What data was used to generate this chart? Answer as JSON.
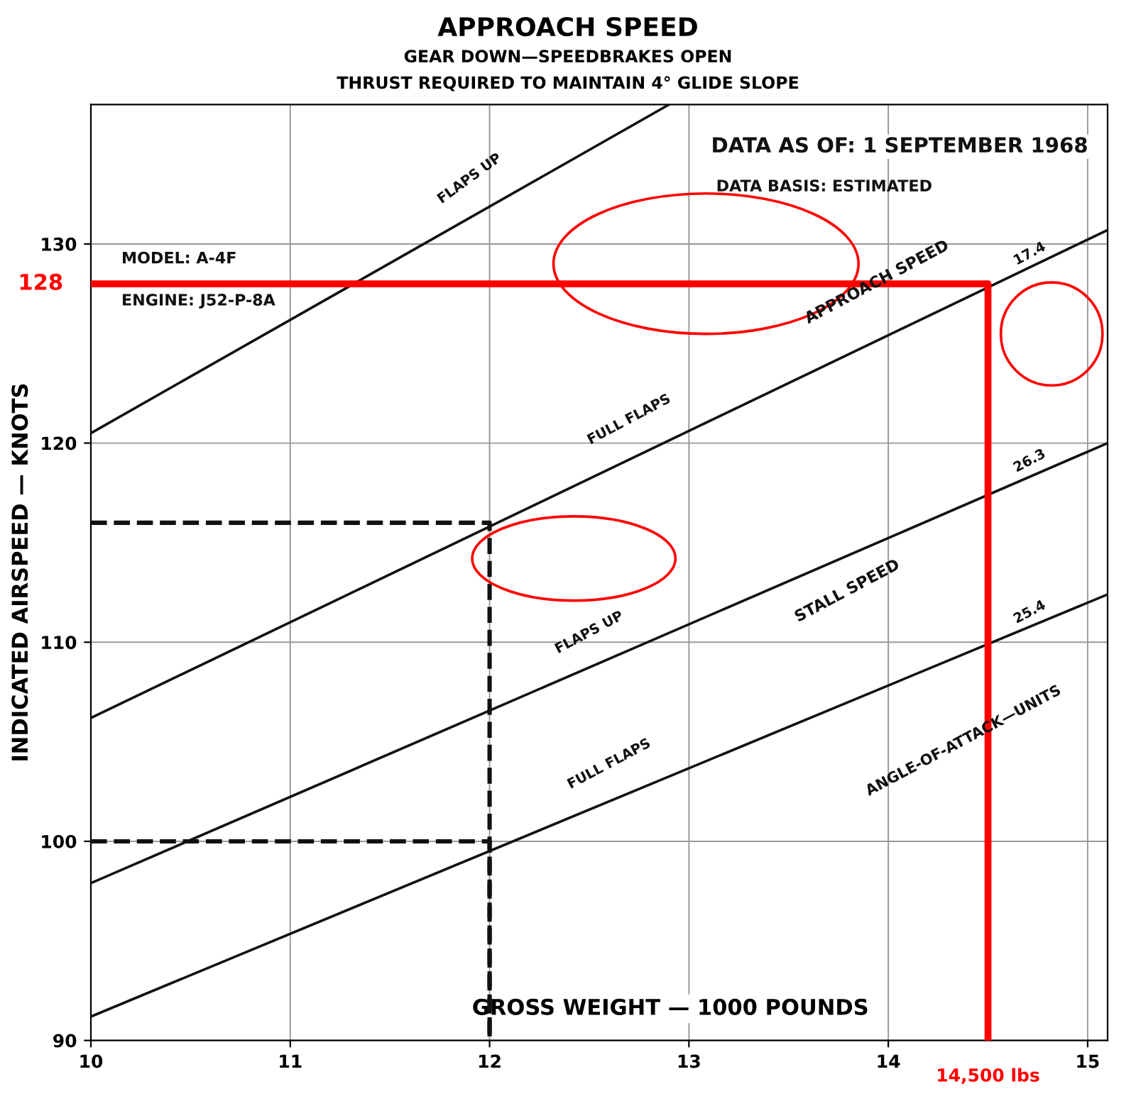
{
  "chart_data": {
    "type": "line",
    "title": "APPROACH SPEED",
    "subtitle": "GEAR DOWN—SPEEDBRAKES OPEN\nTHRUST REQUIRED TO MAINTAIN 4° GLIDE SLOPE",
    "xlabel": "GROSS WEIGHT — 1000 POUNDS",
    "ylabel": "INDICATED AIRSPEED — KNOTS",
    "xlim": [
      10,
      15.1
    ],
    "ylim": [
      90,
      137
    ],
    "xticks": [
      10,
      11,
      12,
      13,
      14,
      15
    ],
    "yticks": [
      90,
      100,
      110,
      120,
      130
    ],
    "grid": true,
    "marker": "none",
    "series": [
      {
        "color": "#111111",
        "x": [
          10,
          12.9
        ],
        "values": [
          120.5,
          137
        ],
        "line_style": "solid"
      },
      {
        "color": "#111111",
        "x": [
          10,
          15.1
        ],
        "values": [
          106.2,
          130.7
        ],
        "line_style": "solid"
      },
      {
        "color": "#111111",
        "x": [
          10,
          15.1
        ],
        "values": [
          97.9,
          120.0
        ],
        "line_style": "solid"
      },
      {
        "color": "#111111",
        "x": [
          10,
          15.1
        ],
        "values": [
          91.2,
          112.4
        ],
        "line_style": "solid"
      },
      {
        "color": "#111111",
        "x": [
          10,
          12,
          12
        ],
        "values": [
          116,
          116,
          90
        ],
        "line_style": "dashed"
      },
      {
        "color": "#111111",
        "x": [
          10,
          12,
          12
        ],
        "values": [
          100,
          100,
          90
        ],
        "line_style": "dashed"
      },
      {
        "color": "#ff0000",
        "x": [
          10,
          14.5,
          14.5
        ],
        "values": [
          128,
          128,
          90
        ],
        "line_style": "solid"
      }
    ],
    "annotations": [
      "DATA AS OF: 1 SEPTEMBER 1968",
      "DATA BASIS: ESTIMATED",
      "MODEL: A-4F",
      "ENGINE: J52-P-8A",
      "APPROACH SPEED",
      "STALL SPEED",
      "ANGLE-OF-ATTACK—UNITS",
      {
        "text": "FLAPS UP",
        "x": 11.9,
        "y": 131.3
      },
      {
        "text": "FULL FLAPS",
        "x": 12.7,
        "y": 119.2
      },
      {
        "text": "FLAPS UP",
        "x": 12.5,
        "y": 108.7
      },
      {
        "text": "FULL FLAPS",
        "x": 12.6,
        "y": 101.9
      },
      {
        "text": "17.4",
        "x": 14.65,
        "y": 128.5
      },
      {
        "text": "26.3",
        "x": 14.65,
        "y": 118.1
      },
      {
        "text": "25.4",
        "x": 14.65,
        "y": 110.5
      },
      {
        "text": "128",
        "x": 10,
        "y": 128
      },
      {
        "text": "14,500 lbs",
        "x": 14.5,
        "y": 90
      }
    ]
  }
}
